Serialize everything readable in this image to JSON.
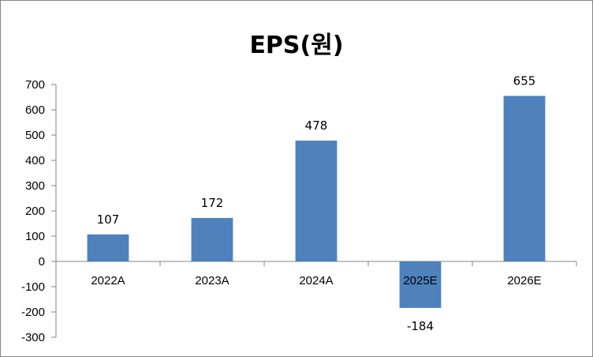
{
  "chart_data": {
    "type": "bar",
    "title": "EPS(원)",
    "categories": [
      "2022A",
      "2023A",
      "2024A",
      "2025E",
      "2026E"
    ],
    "values": [
      107,
      172,
      478,
      -184,
      655
    ],
    "data_labels": [
      "107",
      "172",
      "478",
      "-184",
      "655"
    ],
    "ylim": [
      -300,
      700
    ],
    "yticks": [
      -300,
      -200,
      -100,
      0,
      100,
      200,
      300,
      400,
      500,
      600,
      700
    ],
    "bar_color": "#4F81BD",
    "grid": false,
    "legend": "none"
  }
}
